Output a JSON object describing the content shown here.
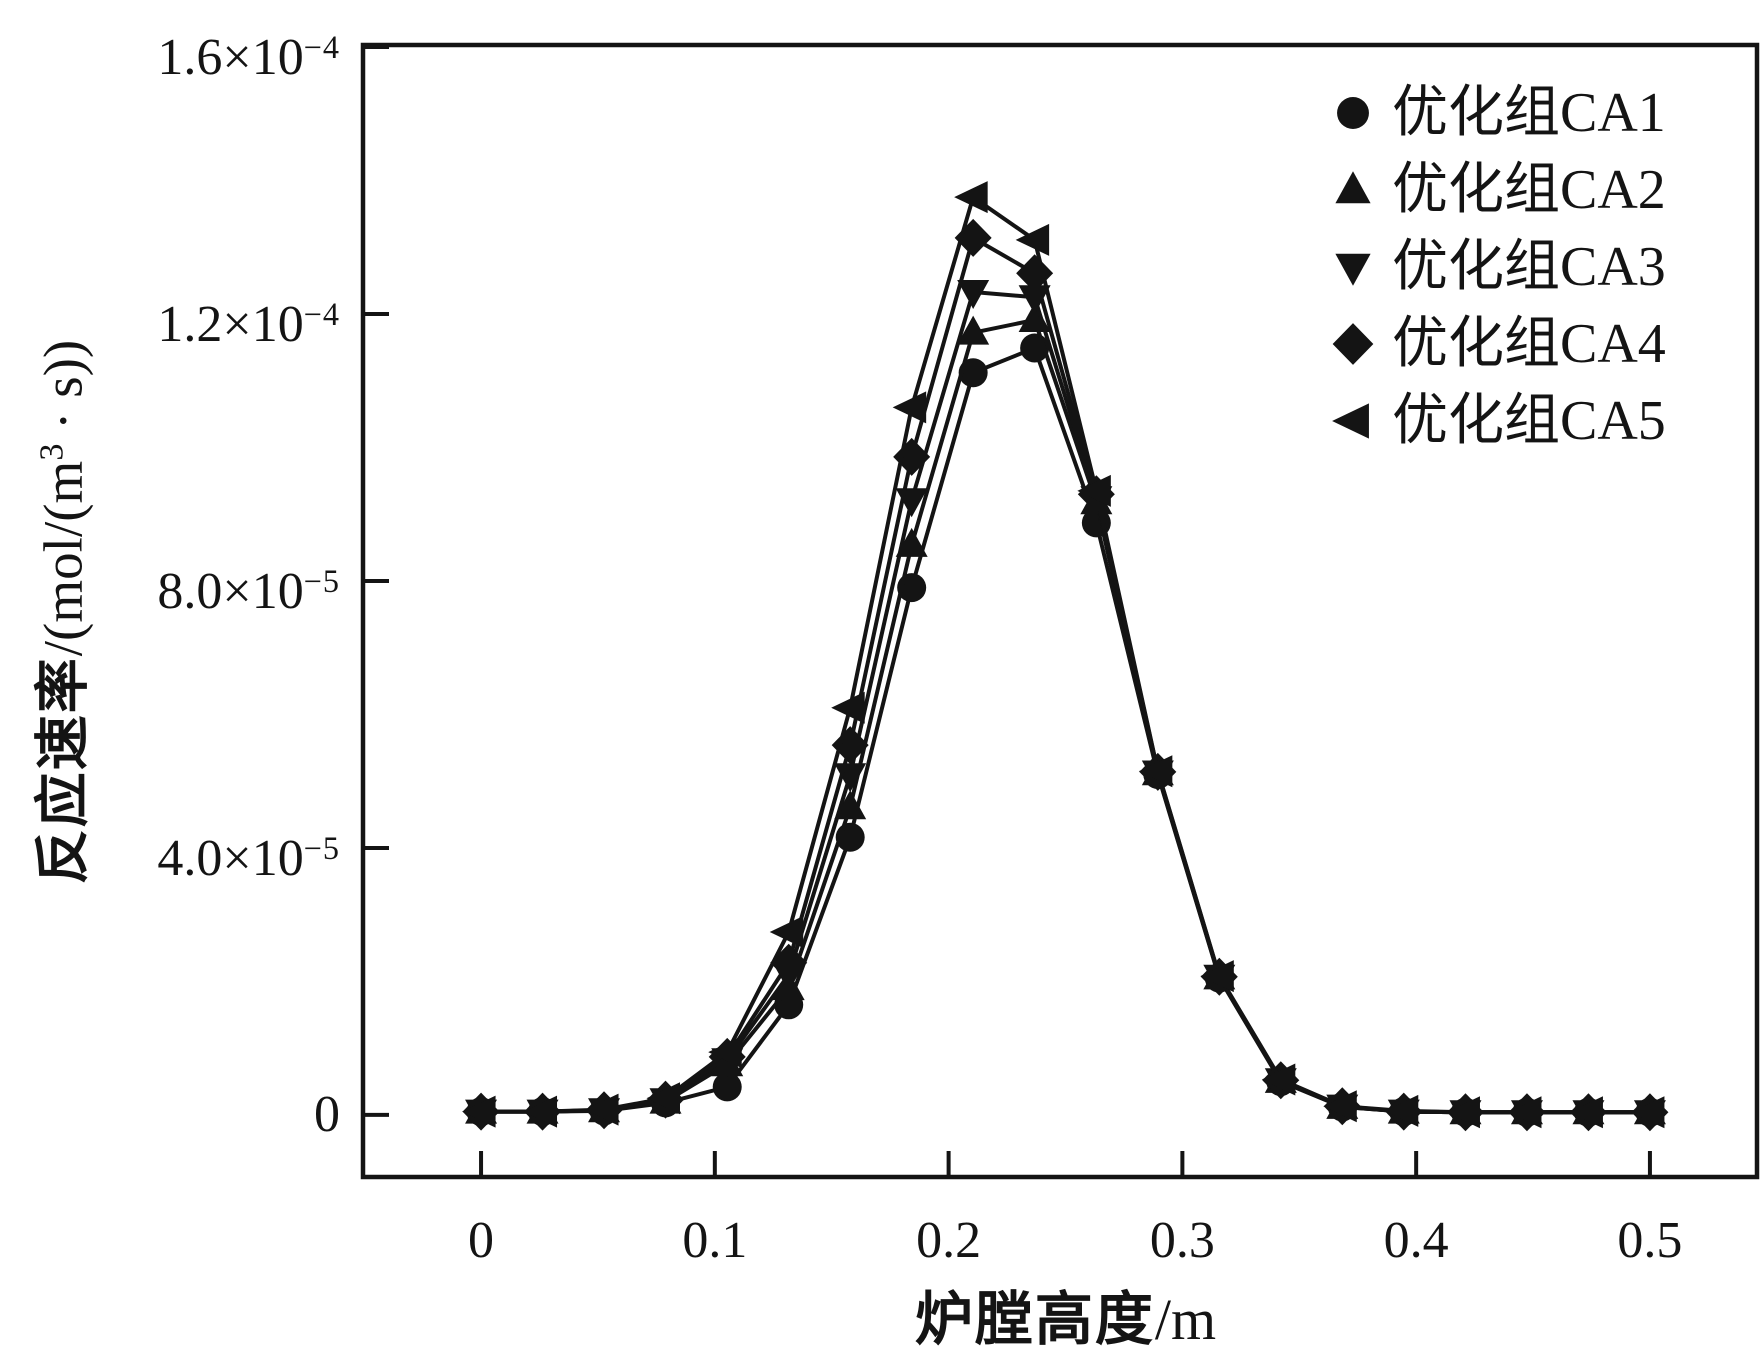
{
  "page": {
    "background": "#ffffff",
    "ink_color": "#141414"
  },
  "chart_data": {
    "type": "line",
    "title": "",
    "xlabel": "炉膛高度/m",
    "ylabel": "反应速率/(mol/(m³ · s))",
    "xlabel_parts": [
      {
        "text": "炉膛高度",
        "style": "cjk"
      },
      {
        "text": "/m",
        "style": "lat"
      }
    ],
    "ylabel_parts": [
      {
        "text": "反应速率",
        "style": "cjk"
      },
      {
        "text": "/(mol/(m",
        "style": "lat"
      },
      {
        "text": "3",
        "style": "sup"
      },
      {
        "text": " · s))",
        "style": "lat"
      }
    ],
    "grid": false,
    "legend_position": "top-right-inside",
    "xlim": [
      -0.0505,
      0.5458
    ],
    "ylim": [
      -9.3e-06,
      0.0001603
    ],
    "x_ticks": [
      {
        "value": 0,
        "label": "0"
      },
      {
        "value": 0.1,
        "label": "0.1"
      },
      {
        "value": 0.2,
        "label": "0.2"
      },
      {
        "value": 0.3,
        "label": "0.3"
      },
      {
        "value": 0.4,
        "label": "0.4"
      },
      {
        "value": 0.5,
        "label": "0.5"
      }
    ],
    "y_ticks": [
      {
        "value": 0,
        "mantissa": "0",
        "exponent": ""
      },
      {
        "value": 4e-05,
        "mantissa": "4.0×10",
        "exponent": "−5"
      },
      {
        "value": 8e-05,
        "mantissa": "8.0×10",
        "exponent": "−5"
      },
      {
        "value": 0.00012,
        "mantissa": "1.2×10",
        "exponent": "−4"
      },
      {
        "value": 0.00016,
        "mantissa": "1.6×10",
        "exponent": "−4"
      }
    ],
    "x": [
      0,
      0.0263,
      0.0526,
      0.0789,
      0.1053,
      0.1316,
      0.1579,
      0.1842,
      0.2105,
      0.2368,
      0.2632,
      0.2895,
      0.3158,
      0.3421,
      0.3684,
      0.3947,
      0.4211,
      0.4474,
      0.4737,
      0.5
    ],
    "series": [
      {
        "name": "优化组CA1",
        "marker": "circle",
        "values": [
          5e-07,
          5e-07,
          6e-07,
          1.8e-06,
          4.2e-06,
          1.65e-05,
          4.16e-05,
          7.9e-05,
          0.0001112,
          0.0001149,
          8.87e-05,
          5.1e-05,
          2.05e-05,
          5e-06,
          1.2e-06,
          5e-07,
          4e-07,
          4e-07,
          4e-07,
          4e-07
        ]
      },
      {
        "name": "优化组CA2",
        "marker": "triangle-up",
        "values": [
          5e-07,
          5e-07,
          7e-07,
          2e-06,
          7.6e-06,
          1.9e-05,
          4.61e-05,
          8.54e-05,
          0.0001172,
          0.0001191,
          9.18e-05,
          5.12e-05,
          2.06e-05,
          5.1e-06,
          1.2e-06,
          5e-07,
          4e-07,
          4e-07,
          4e-07,
          4e-07
        ]
      },
      {
        "name": "优化组CA3",
        "marker": "triangle-down",
        "values": [
          5e-07,
          5e-07,
          7e-07,
          2.2e-06,
          8.2e-06,
          2.1e-05,
          5.09e-05,
          9.21e-05,
          0.0001233,
          0.0001225,
          9.24e-05,
          5.13e-05,
          2.07e-05,
          5.2e-06,
          1.25e-06,
          5e-07,
          4e-07,
          4e-07,
          4e-07,
          4e-07
        ]
      },
      {
        "name": "优化组CA4",
        "marker": "diamond",
        "values": [
          5e-07,
          5e-07,
          7e-07,
          2.3e-06,
          8.7e-06,
          2.28e-05,
          5.54e-05,
          9.86e-05,
          0.0001314,
          0.0001261,
          9.3e-05,
          5.14e-05,
          2.07e-05,
          5.2e-06,
          1.3e-06,
          5e-07,
          4e-07,
          4e-07,
          4e-07,
          4e-07
        ]
      },
      {
        "name": "优化组CA5",
        "marker": "triangle-left",
        "values": [
          5e-07,
          5e-07,
          8e-07,
          2.5e-06,
          9.4e-06,
          2.74e-05,
          6.1e-05,
          0.000106,
          0.0001375,
          0.0001311,
          9.35e-05,
          5.15e-05,
          2.08e-05,
          5.3e-06,
          1.3e-06,
          6e-07,
          4e-07,
          4e-07,
          4e-07,
          4e-07
        ]
      }
    ]
  }
}
